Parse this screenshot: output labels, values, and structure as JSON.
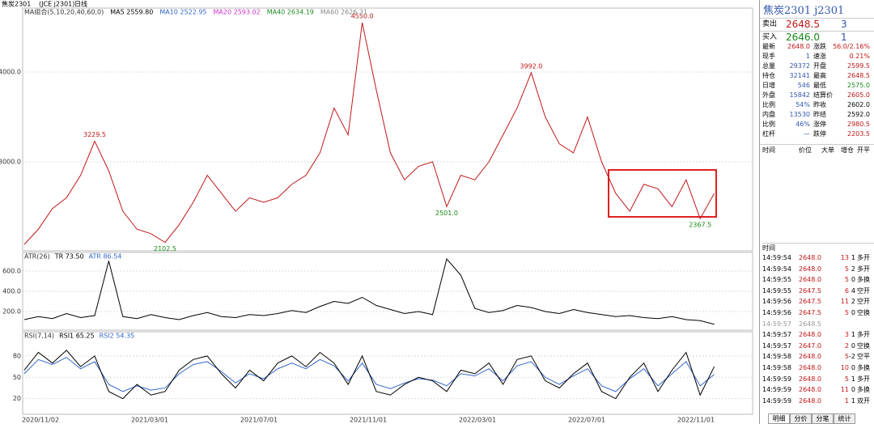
{
  "header": {
    "title": "焦炭2301",
    "code": "(JCE j2301)",
    "period": "日线"
  },
  "ma_legend": [
    "MA组合(5,10,20,40,60,0)",
    "MA5 2559.80",
    "MA10 2522.95",
    "MA20 2593.02",
    "MA40 2634.19",
    "MA60 2626.31"
  ],
  "price_chart": {
    "ylim": [
      2009,
      4712
    ],
    "yticks": [
      {
        "value": 3000,
        "label": "3000.0"
      },
      {
        "value": 4000,
        "label": "4000.0"
      }
    ],
    "close": [
      2080,
      2250,
      2480,
      2600,
      2850,
      3229.5,
      2900,
      2450,
      2250,
      2200,
      2102.5,
      2300,
      2550,
      2850,
      2650,
      2450,
      2600,
      2550,
      2600,
      2750,
      2850,
      3100,
      3600,
      3300,
      4550,
      3800,
      3100,
      2800,
      2950,
      3000,
      2501,
      2850,
      2800,
      3000,
      3300,
      3600,
      3992,
      3500,
      3200,
      3100,
      3500,
      3000,
      2650,
      2450,
      2750,
      2700,
      2500,
      2800,
      2367.5,
      2648
    ],
    "annotations": [
      {
        "value": 3229.5,
        "label": "3229.5"
      },
      {
        "value": 2102.5,
        "label": "2102.5"
      },
      {
        "value": 4550,
        "label": "4550.0"
      },
      {
        "value": 2501,
        "label": "2501.0"
      },
      {
        "value": 3992,
        "label": "3992.0"
      },
      {
        "value": 2367.5,
        "label": "2367.5"
      }
    ]
  },
  "atr_chart": {
    "legend": [
      "ATR(26)",
      "TR 73.50",
      "ATR 86.54"
    ],
    "ylim": [
      16,
      784
    ],
    "yticks": [
      {
        "value": 200,
        "label": "200.0"
      },
      {
        "value": 400,
        "label": "400.0"
      },
      {
        "value": 600,
        "label": "600.0"
      }
    ],
    "tr": [
      120,
      150,
      130,
      180,
      140,
      160,
      700,
      150,
      130,
      170,
      140,
      120,
      160,
      190,
      150,
      140,
      170,
      160,
      180,
      210,
      190,
      250,
      300,
      280,
      340,
      260,
      220,
      180,
      200,
      170,
      720,
      560,
      230,
      190,
      210,
      260,
      240,
      200,
      180,
      220,
      190,
      170,
      150,
      160,
      140,
      130,
      150,
      120,
      110,
      74
    ]
  },
  "rsi_chart": {
    "legend": [
      "RSI(7,14)",
      "RSI1 65.25",
      "RSI2 54.35"
    ],
    "ylim": [
      -2,
      114
    ],
    "yticks": [
      20,
      50,
      80
    ],
    "rsi1": [
      60,
      85,
      70,
      88,
      65,
      80,
      30,
      20,
      40,
      25,
      30,
      60,
      75,
      80,
      55,
      35,
      60,
      45,
      70,
      80,
      65,
      85,
      70,
      40,
      80,
      30,
      25,
      40,
      50,
      45,
      30,
      60,
      55,
      70,
      40,
      75,
      80,
      45,
      35,
      55,
      70,
      30,
      20,
      50,
      70,
      30,
      60,
      85,
      25,
      65
    ],
    "rsi2": [
      55,
      75,
      68,
      78,
      62,
      72,
      40,
      30,
      38,
      32,
      35,
      55,
      68,
      72,
      58,
      42,
      55,
      48,
      62,
      70,
      62,
      75,
      66,
      45,
      70,
      40,
      34,
      42,
      48,
      46,
      38,
      55,
      52,
      62,
      45,
      66,
      72,
      50,
      40,
      52,
      62,
      38,
      30,
      48,
      62,
      38,
      55,
      72,
      38,
      54
    ]
  },
  "x_labels": [
    "2020/11/02",
    "2021/03/01",
    "2021/07/01",
    "2021/11/01",
    "2022/03/01",
    "2022/07/01",
    "2022/11/01"
  ],
  "quote": {
    "title": "焦炭2301  j2301",
    "sell": [
      "卖出",
      "2648.5",
      "3"
    ],
    "buy": [
      "买入",
      "2646.0",
      "1"
    ],
    "rows": [
      [
        "最新",
        "2648.0",
        "涨跌",
        "56.0/2.16%"
      ],
      [
        "现手",
        "1",
        "速涨",
        "0.21%"
      ],
      [
        "总量",
        "29372",
        "开盘",
        "2599.5"
      ],
      [
        "持仓",
        "32141",
        "最高",
        "2648.5"
      ],
      [
        "日增",
        "546",
        "最低",
        "2575.0"
      ],
      [
        "外盘",
        "15842",
        "结算价",
        "2605.0"
      ],
      [
        "比例",
        "54%",
        "昨收",
        "2602.0"
      ],
      [
        "内盘",
        "13530",
        "昨结",
        "2592.0"
      ],
      [
        "比例",
        "46%",
        "涨停",
        "2980.5"
      ],
      [
        "杠杆",
        "—",
        "跌停",
        "2203.5"
      ]
    ],
    "columns": [
      "时间",
      "价位",
      "大单",
      "增仓",
      "开平"
    ]
  },
  "ticks": {
    "header": "时间",
    "rows": [
      [
        "14:59:54",
        "2648.0",
        "13",
        "1",
        "多开"
      ],
      [
        "14:59:54",
        "2648.0",
        "5",
        "2",
        "多开"
      ],
      [
        "14:59:55",
        "2648.0",
        "5",
        "0",
        "多换"
      ],
      [
        "14:59:55",
        "2647.5",
        "6",
        "4",
        "空开"
      ],
      [
        "14:59:56",
        "2647.5",
        "11",
        "2",
        "空开"
      ],
      [
        "14:59:56",
        "2647.5",
        "5",
        "0",
        "空换"
      ],
      [
        "14:59:57",
        "2648.5"
      ],
      [
        "14:59:57",
        "2648.0",
        "3",
        "1",
        "多开"
      ],
      [
        "14:59:57",
        "2647.0",
        "2",
        "0",
        "空换"
      ],
      [
        "14:59:58",
        "2648.0",
        "5",
        "-2",
        "空平"
      ],
      [
        "14:59:58",
        "2648.0",
        "10",
        "0",
        "多换"
      ],
      [
        "14:59:59",
        "2648.0",
        "5",
        "1",
        "多开"
      ],
      [
        "14:59:59",
        "2648.0",
        "11",
        "0",
        "多换"
      ],
      [
        "14:59:59",
        "2648.0",
        "1",
        "1",
        "双开"
      ]
    ]
  },
  "tabs": [
    "明细",
    "分价",
    "分笔",
    "统计"
  ]
}
